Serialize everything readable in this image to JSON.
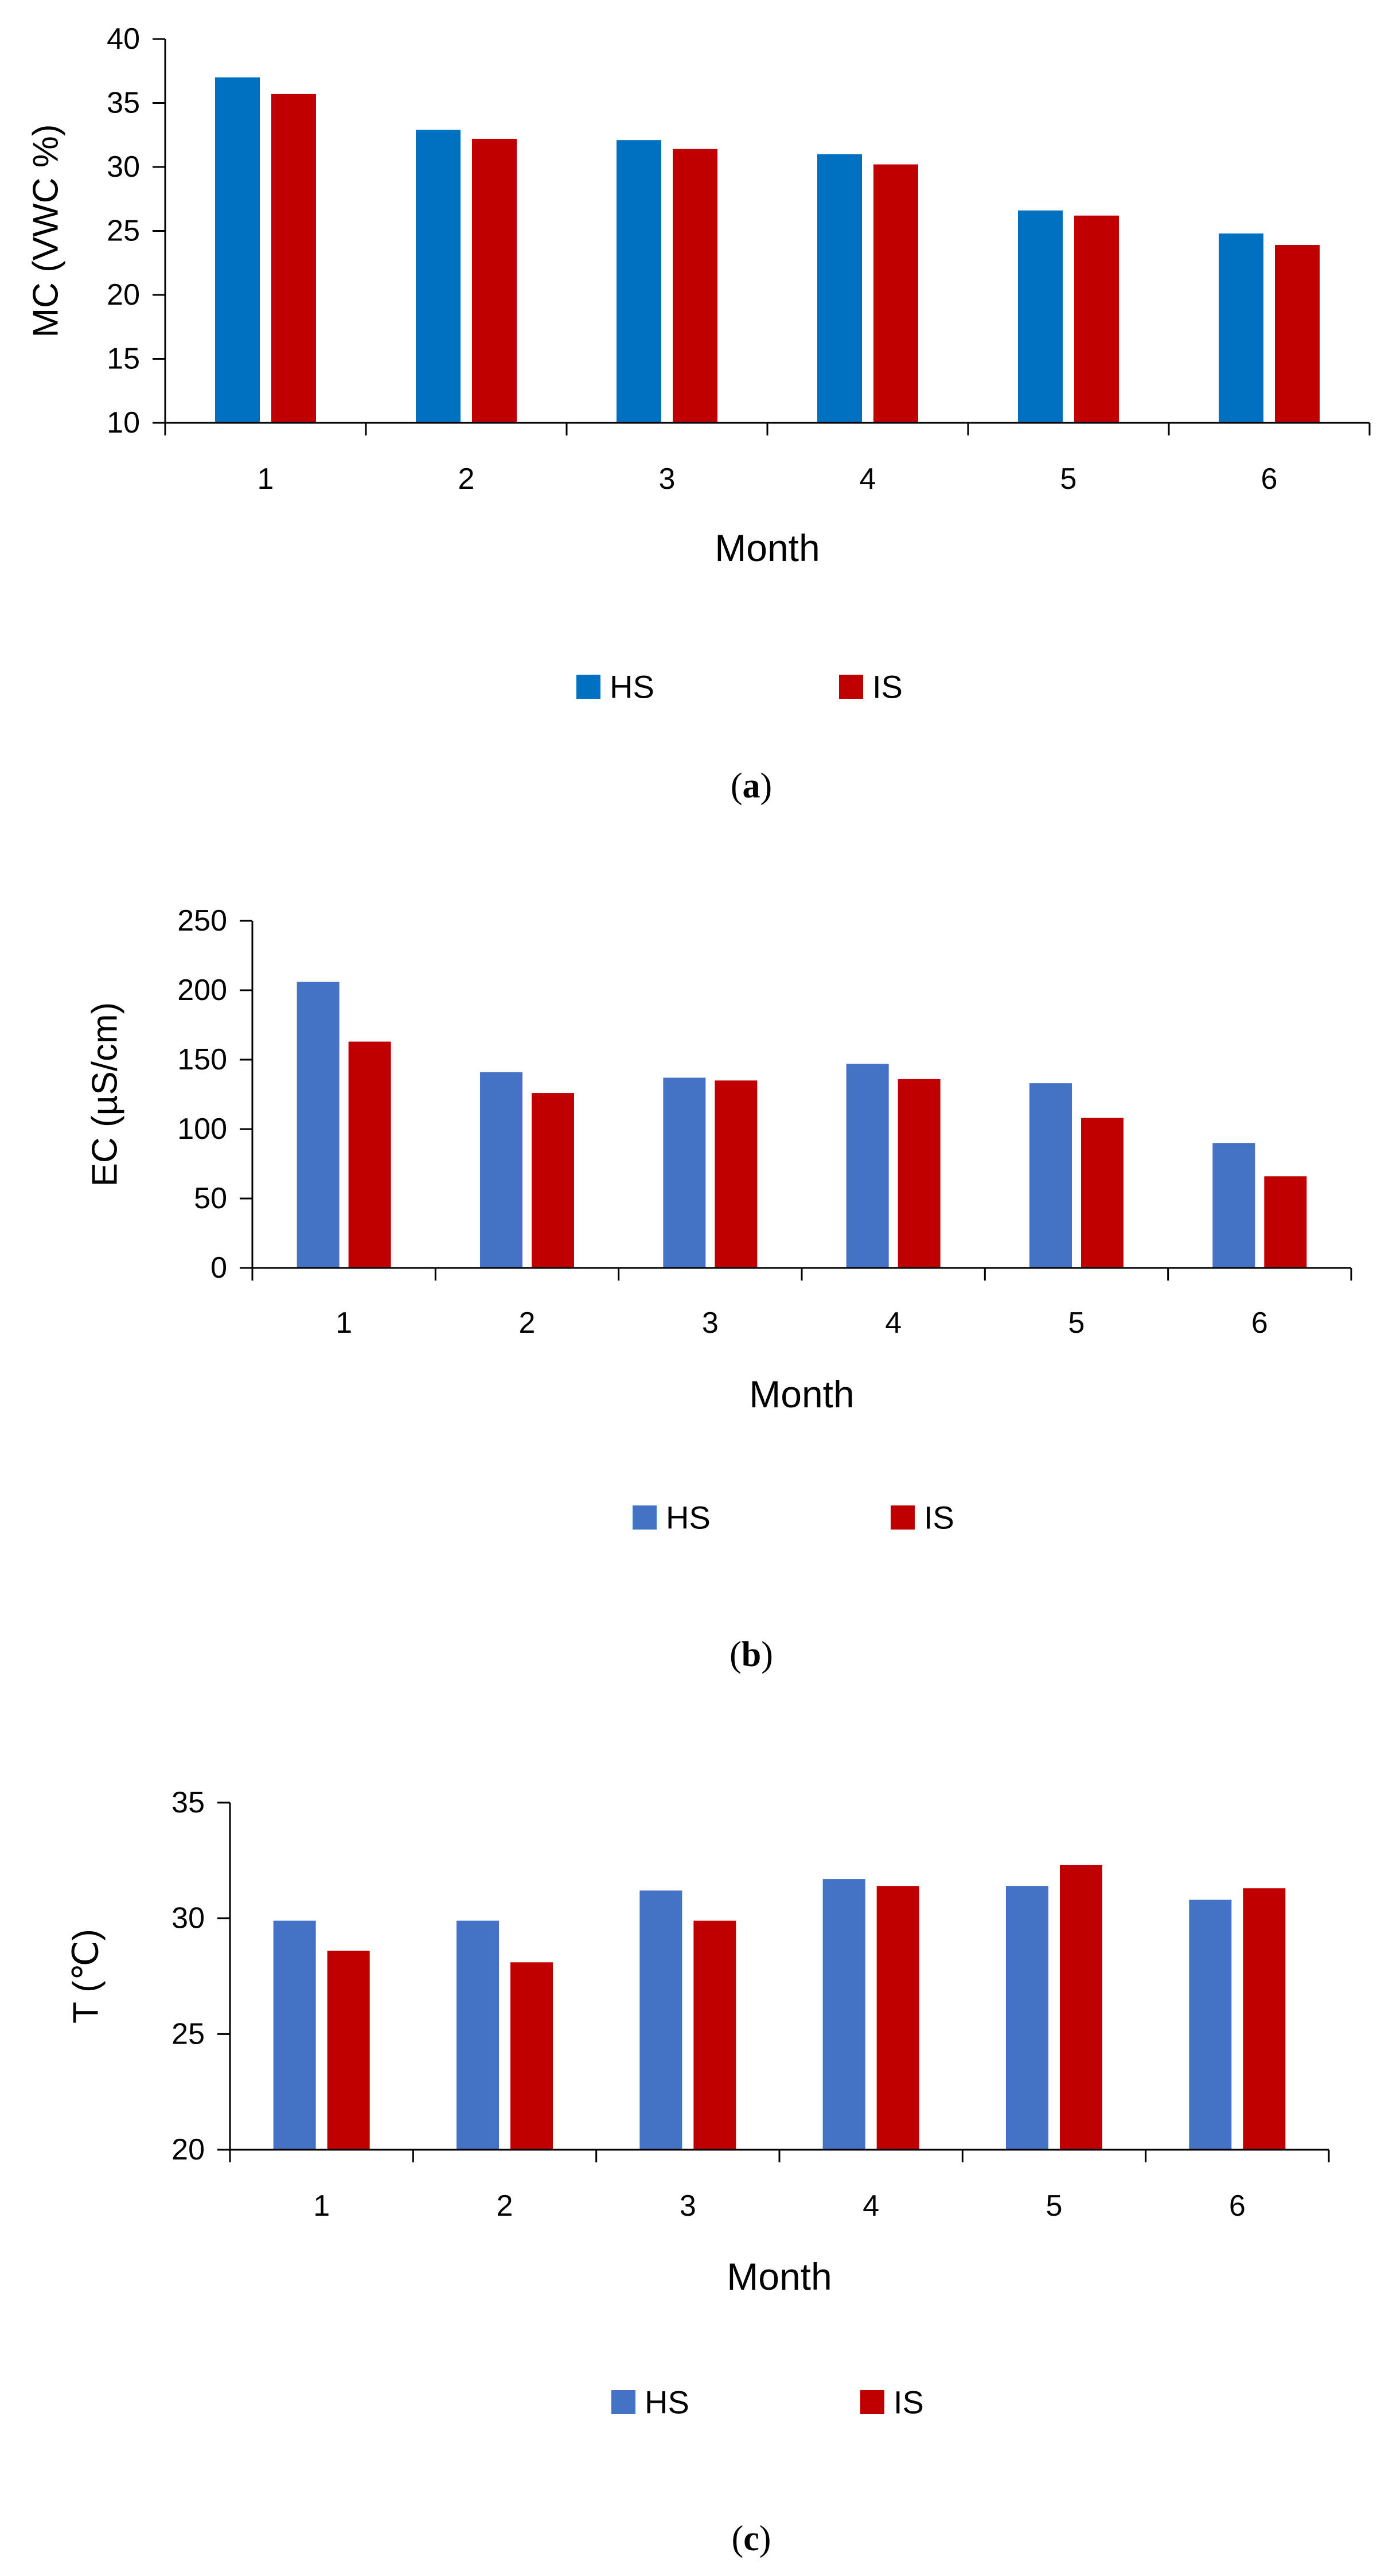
{
  "chart_data": [
    {
      "type": "bar",
      "panel_label_open": "(",
      "panel_label_letter": "a",
      "panel_label_close": ")",
      "title": "",
      "xlabel": "Month",
      "ylabel": "MC (VWC %)",
      "categories": [
        "1",
        "2",
        "3",
        "4",
        "5",
        "6"
      ],
      "ylim": [
        10,
        40
      ],
      "yticks": [
        10,
        15,
        20,
        25,
        30,
        35,
        40
      ],
      "grid": false,
      "legend_position": "bottom",
      "series": [
        {
          "name": "HS",
          "color": "#0070C0",
          "values": [
            37.0,
            32.9,
            32.1,
            31.0,
            26.6,
            24.8
          ]
        },
        {
          "name": "IS",
          "color": "#C00000",
          "values": [
            35.7,
            32.2,
            31.4,
            30.2,
            26.2,
            23.9
          ]
        }
      ]
    },
    {
      "type": "bar",
      "panel_label_open": "(",
      "panel_label_letter": "b",
      "panel_label_close": ")",
      "title": "",
      "xlabel": "Month",
      "ylabel": "EC (µS/cm)",
      "categories": [
        "1",
        "2",
        "3",
        "4",
        "5",
        "6"
      ],
      "ylim": [
        0,
        250
      ],
      "yticks": [
        0,
        50,
        100,
        150,
        200,
        250
      ],
      "grid": false,
      "legend_position": "bottom",
      "series": [
        {
          "name": "HS",
          "color": "#4472C4",
          "values": [
            206,
            141,
            137,
            147,
            133,
            90
          ]
        },
        {
          "name": "IS",
          "color": "#C00000",
          "values": [
            163,
            126,
            135,
            136,
            108,
            66
          ]
        }
      ]
    },
    {
      "type": "bar",
      "panel_label_open": "(",
      "panel_label_letter": "c",
      "panel_label_close": ")",
      "title": "",
      "xlabel": "Month",
      "ylabel": "T (℃)",
      "categories": [
        "1",
        "2",
        "3",
        "4",
        "5",
        "6"
      ],
      "ylim": [
        20,
        35
      ],
      "yticks": [
        20,
        25,
        30,
        35
      ],
      "grid": false,
      "legend_position": "bottom",
      "series": [
        {
          "name": "HS",
          "color": "#4472C4",
          "values": [
            29.9,
            29.9,
            31.2,
            31.7,
            31.4,
            30.8
          ]
        },
        {
          "name": "IS",
          "color": "#C00000",
          "values": [
            28.6,
            28.1,
            29.9,
            31.4,
            32.3,
            31.3
          ]
        }
      ]
    }
  ]
}
